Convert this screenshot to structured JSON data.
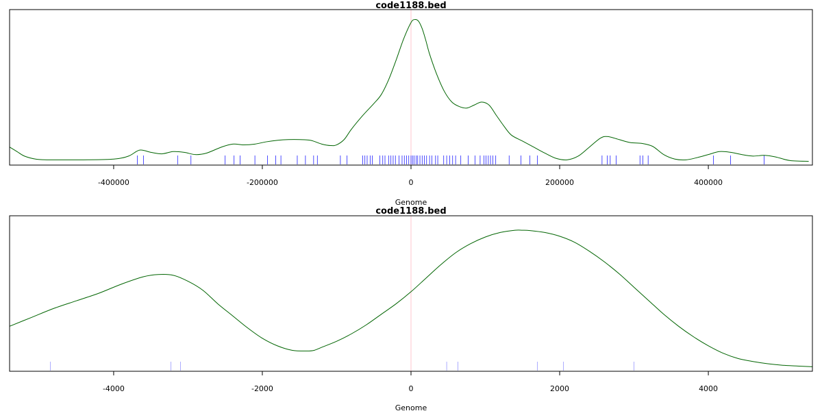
{
  "chart_data": [
    {
      "type": "line",
      "title": "code1188.bed",
      "xlabel": "Genome",
      "ylabel": "",
      "xlim": [
        -540000,
        540000
      ],
      "ylim": [
        0,
        1.0
      ],
      "xticks": [
        -400000,
        -200000,
        0,
        200000,
        400000
      ],
      "tick_labels": [
        "-400000",
        "-200000",
        "0",
        "200000",
        "400000"
      ],
      "grid": false,
      "center_line_x": 0,
      "series": [
        {
          "color": "#006400",
          "x": [
            -540000,
            -530000,
            -520000,
            -505000,
            -490000,
            -470000,
            -440000,
            -400000,
            -380000,
            -365000,
            -350000,
            -335000,
            -320000,
            -305000,
            -290000,
            -275000,
            -255000,
            -240000,
            -225000,
            -210000,
            -195000,
            -180000,
            -165000,
            -150000,
            -135000,
            -120000,
            -108000,
            -100000,
            -90000,
            -80000,
            -65000,
            -50000,
            -40000,
            -30000,
            -20000,
            -10000,
            0,
            5000,
            10000,
            15000,
            20000,
            25000,
            35000,
            45000,
            55000,
            65000,
            75000,
            85000,
            95000,
            105000,
            115000,
            125000,
            135000,
            150000,
            165000,
            180000,
            195000,
            210000,
            225000,
            240000,
            255000,
            265000,
            280000,
            295000,
            310000,
            325000,
            340000,
            355000,
            370000,
            385000,
            400000,
            415000,
            430000,
            445000,
            460000,
            475000,
            490000,
            510000,
            535000
          ],
          "y": [
            0.12,
            0.09,
            0.06,
            0.04,
            0.035,
            0.035,
            0.035,
            0.04,
            0.06,
            0.1,
            0.085,
            0.075,
            0.09,
            0.085,
            0.07,
            0.08,
            0.12,
            0.14,
            0.135,
            0.14,
            0.155,
            0.165,
            0.17,
            0.17,
            0.165,
            0.14,
            0.13,
            0.135,
            0.17,
            0.24,
            0.33,
            0.41,
            0.47,
            0.57,
            0.7,
            0.84,
            0.95,
            0.97,
            0.96,
            0.91,
            0.83,
            0.74,
            0.6,
            0.49,
            0.42,
            0.39,
            0.38,
            0.4,
            0.42,
            0.4,
            0.33,
            0.26,
            0.2,
            0.16,
            0.12,
            0.08,
            0.045,
            0.035,
            0.06,
            0.12,
            0.18,
            0.19,
            0.17,
            0.15,
            0.145,
            0.125,
            0.07,
            0.04,
            0.035,
            0.05,
            0.07,
            0.09,
            0.085,
            0.07,
            0.06,
            0.065,
            0.055,
            0.03,
            0.025
          ]
        }
      ],
      "rug": {
        "color": "#0000ff",
        "x": [
          -368000,
          -360000,
          -314000,
          -296000,
          -250000,
          -238000,
          -230000,
          -210000,
          -193000,
          -182000,
          -175000,
          -153000,
          -142000,
          -131000,
          -126000,
          -95000,
          -86000,
          -65000,
          -62000,
          -59000,
          -55000,
          -52000,
          -42000,
          -38000,
          -35000,
          -30000,
          -27000,
          -24000,
          -21000,
          -16000,
          -12000,
          -9000,
          -6000,
          -3000,
          0,
          2000,
          4000,
          7000,
          9000,
          12000,
          15000,
          18000,
          21000,
          25000,
          28000,
          33000,
          36000,
          44000,
          48000,
          52000,
          56000,
          60000,
          67000,
          77000,
          86000,
          93000,
          98000,
          101000,
          104000,
          107000,
          110000,
          114000,
          132000,
          148000,
          160000,
          170000,
          257000,
          264000,
          268000,
          276000,
          308000,
          312000,
          319000,
          407000,
          430000,
          475000
        ]
      }
    },
    {
      "type": "line",
      "title": "code1188.bed",
      "xlabel": "Genome",
      "ylabel": "",
      "xlim": [
        -5400,
        5400
      ],
      "ylim": [
        0,
        1.0
      ],
      "xticks": [
        -4000,
        -2000,
        0,
        2000,
        4000
      ],
      "tick_labels": [
        "-4000",
        "-2000",
        "0",
        "2000",
        "4000"
      ],
      "grid": false,
      "center_line_x": 0,
      "series": [
        {
          "color": "#006400",
          "x": [
            -5400,
            -5100,
            -4800,
            -4500,
            -4200,
            -3900,
            -3600,
            -3400,
            -3200,
            -3000,
            -2800,
            -2600,
            -2400,
            -2200,
            -2000,
            -1800,
            -1600,
            -1400,
            -1300,
            -1200,
            -1000,
            -800,
            -600,
            -400,
            -200,
            0,
            200,
            400,
            600,
            800,
            1000,
            1200,
            1400,
            1500,
            1600,
            1800,
            2000,
            2200,
            2400,
            2600,
            2800,
            3000,
            3200,
            3400,
            3600,
            3800,
            4000,
            4200,
            4400,
            4600,
            4800,
            5000,
            5200,
            5400
          ],
          "y": [
            0.3,
            0.36,
            0.42,
            0.47,
            0.52,
            0.58,
            0.63,
            0.645,
            0.64,
            0.6,
            0.54,
            0.45,
            0.37,
            0.29,
            0.22,
            0.17,
            0.14,
            0.135,
            0.14,
            0.16,
            0.2,
            0.25,
            0.31,
            0.38,
            0.45,
            0.53,
            0.62,
            0.71,
            0.79,
            0.85,
            0.895,
            0.925,
            0.94,
            0.94,
            0.938,
            0.925,
            0.9,
            0.86,
            0.8,
            0.73,
            0.65,
            0.56,
            0.47,
            0.38,
            0.3,
            0.23,
            0.17,
            0.12,
            0.085,
            0.065,
            0.05,
            0.04,
            0.035,
            0.03
          ]
        }
      ],
      "rug": {
        "color": "#8888ff",
        "x": [
          -4850,
          -3230,
          -3100,
          480,
          630,
          1700,
          2050,
          3000
        ]
      }
    }
  ]
}
